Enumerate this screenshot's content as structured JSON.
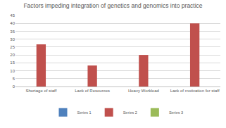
{
  "chart_data": {
    "type": "bar",
    "title": "Factors impeding integration of genetics and genomics into practice",
    "categories": [
      "Shortage of staff",
      "Lack of Resources",
      "Heavy Workload",
      "Lack of motivation for staff"
    ],
    "series": [
      {
        "name": "Series 1",
        "color": "#4f81bd",
        "values": [
          null,
          null,
          null,
          null
        ]
      },
      {
        "name": "Series 2",
        "color": "#c0504d",
        "values": [
          26.7,
          13.3,
          20,
          40
        ]
      },
      {
        "name": "Series 3",
        "color": "#9bbb59",
        "values": [
          null,
          null,
          null,
          null
        ]
      }
    ],
    "ylim": [
      0,
      45
    ],
    "yticks": [
      0,
      5,
      10,
      15,
      20,
      25,
      30,
      35,
      40,
      45
    ],
    "grid": true,
    "legend": "bottom"
  }
}
